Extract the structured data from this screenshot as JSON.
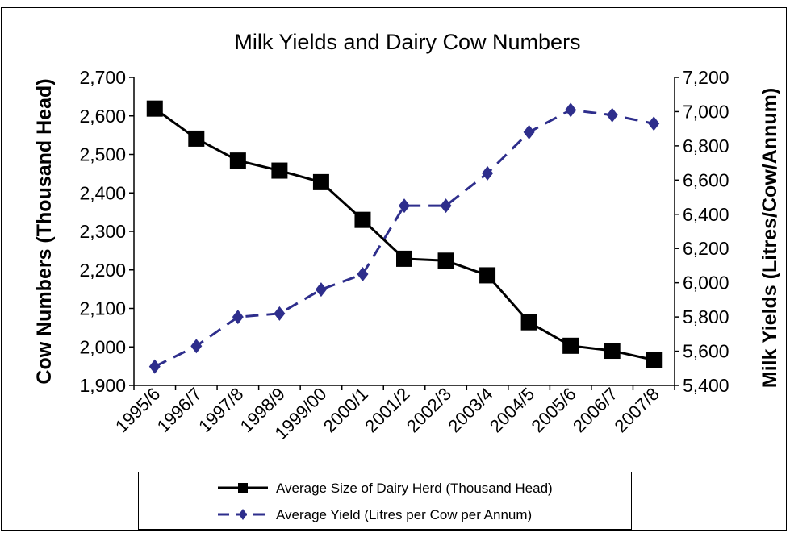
{
  "chart_data": {
    "type": "line",
    "title": "Milk Yields and Dairy Cow Numbers",
    "categories": [
      "1995/6",
      "1996/7",
      "1997/8",
      "1998/9",
      "1999/00",
      "2000/1",
      "2001/2",
      "2002/3",
      "2003/4",
      "2004/5",
      "2005/6",
      "2006/7",
      "2007/8"
    ],
    "y_left": {
      "label": "Cow Numbers (Thousand Head)",
      "range": [
        1900,
        2700
      ],
      "ticks": [
        "1,900",
        "2,000",
        "2,100",
        "2,200",
        "2,300",
        "2,400",
        "2,500",
        "2,600",
        "2,700"
      ]
    },
    "y_right": {
      "label": "Milk Yields (Litres/Cow/Annum)",
      "range": [
        5400,
        7200
      ],
      "ticks": [
        "5,400",
        "5,600",
        "5,800",
        "6,000",
        "6,200",
        "6,400",
        "6,600",
        "6,800",
        "7,000",
        "7,200"
      ]
    },
    "series": [
      {
        "name": "Average Size of Dairy Herd (Thousand Head)",
        "axis": "left",
        "color": "#000000",
        "marker": "square",
        "line": "solid",
        "values": [
          2619,
          2541,
          2484,
          2458,
          2428,
          2330,
          2229,
          2224,
          2186,
          2064,
          2003,
          1990,
          1966
        ]
      },
      {
        "name": "Average Yield (Litres per Cow per Annum)",
        "axis": "right",
        "color": "#2e2e8c",
        "marker": "diamond",
        "line": "dashed",
        "values": [
          5510,
          5630,
          5800,
          5820,
          5960,
          6050,
          6450,
          6450,
          6640,
          6880,
          7010,
          6980,
          6930
        ]
      }
    ],
    "grid": false,
    "legend_position": "bottom"
  }
}
